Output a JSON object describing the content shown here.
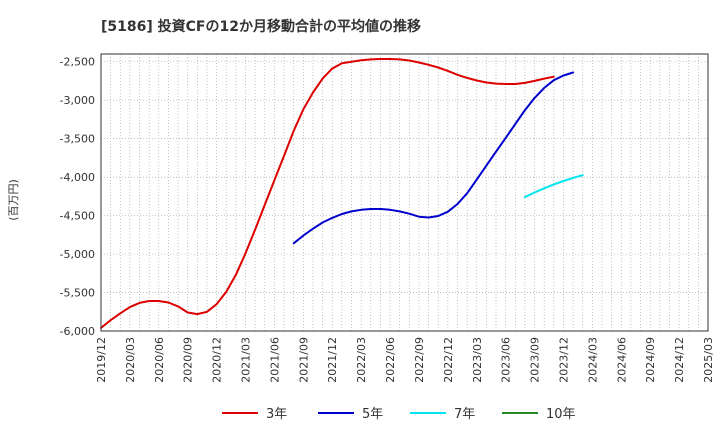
{
  "chart_data": {
    "type": "line",
    "title": "[5186]  投資CFの12か月移動合計の平均値の推移",
    "xlabel": "",
    "ylabel": "(百万円)",
    "ylim": [
      -6000,
      -2400
    ],
    "yticks": [
      -2500,
      -3000,
      -3500,
      -4000,
      -4500,
      -5000,
      -5500,
      -6000
    ],
    "ytick_labels": [
      "-2,500",
      "-3,000",
      "-3,500",
      "-4,000",
      "-4,500",
      "-5,000",
      "-5,500",
      "-6,000"
    ],
    "xticks": [
      "2019/12",
      "2020/03",
      "2020/06",
      "2020/09",
      "2020/12",
      "2021/03",
      "2021/06",
      "2021/09",
      "2021/12",
      "2022/03",
      "2022/06",
      "2022/09",
      "2022/12",
      "2023/03",
      "2023/06",
      "2023/09",
      "2023/12",
      "2024/03",
      "2024/06",
      "2024/09",
      "2024/12",
      "2025/03"
    ],
    "grid": true,
    "legend_position": "bottom",
    "series": [
      {
        "name": "3年",
        "color": "#dd0000",
        "start": "2019/12",
        "values": [
          -5960,
          -5860,
          -5770,
          -5690,
          -5635,
          -5610,
          -5610,
          -5630,
          -5680,
          -5760,
          -5780,
          -5750,
          -5650,
          -5490,
          -5270,
          -4990,
          -4680,
          -4360,
          -4040,
          -3720,
          -3400,
          -3120,
          -2900,
          -2720,
          -2590,
          -2520,
          -2500,
          -2480,
          -2470,
          -2465,
          -2465,
          -2470,
          -2485,
          -2510,
          -2540,
          -2575,
          -2620,
          -2670,
          -2710,
          -2745,
          -2770,
          -2785,
          -2790,
          -2790,
          -2775,
          -2750,
          -2720,
          -2695
        ]
      },
      {
        "name": "5年",
        "color": "#0000cc",
        "start": "2021/08",
        "values": [
          -4860,
          -4760,
          -4670,
          -4590,
          -4530,
          -4480,
          -4445,
          -4425,
          -4415,
          -4415,
          -4425,
          -4445,
          -4475,
          -4515,
          -4525,
          -4505,
          -4450,
          -4350,
          -4210,
          -4030,
          -3850,
          -3670,
          -3490,
          -3310,
          -3130,
          -2970,
          -2840,
          -2740,
          -2680,
          -2640
        ]
      },
      {
        "name": "7年",
        "color": "#00e5ee",
        "start": "2023/08",
        "values": [
          -4260,
          -4200,
          -4145,
          -4095,
          -4050,
          -4010,
          -3975
        ]
      },
      {
        "name": "10年",
        "color": "#228b22",
        "start": "2024/03",
        "values": []
      }
    ]
  }
}
